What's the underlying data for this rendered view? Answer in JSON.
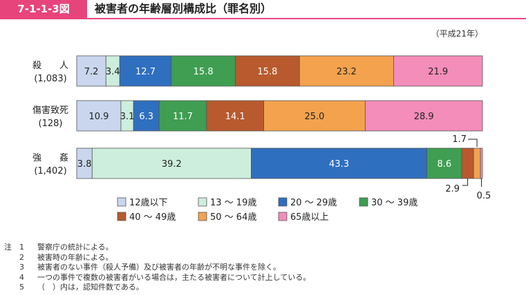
{
  "figure": {
    "label": "7-1-1-3図",
    "title": "被害者の年齢層別構成比（罪名別）",
    "year_note": "（平成21年）"
  },
  "chart_data": {
    "type": "bar",
    "orientation": "horizontal",
    "stacked": "percent",
    "categories": [
      {
        "name": "殺　　人",
        "count": "(1,083)"
      },
      {
        "name": "傷害致死",
        "count": "(128)"
      },
      {
        "name": "強　　姦",
        "count": "(1,402)"
      }
    ],
    "series": [
      {
        "name": "12歳以下",
        "color": "#c9d6ee",
        "values": [
          7.2,
          10.9,
          3.8
        ]
      },
      {
        "name": "13 ～ 19歳",
        "color": "#cdeedd",
        "values": [
          3.4,
          3.1,
          39.2
        ]
      },
      {
        "name": "20 ～ 29歳",
        "color": "#2f6fbf",
        "values": [
          12.7,
          6.3,
          43.3
        ]
      },
      {
        "name": "30 ～ 39歳",
        "color": "#3f9e52",
        "values": [
          15.8,
          11.7,
          8.6
        ]
      },
      {
        "name": "40 ～ 49歳",
        "color": "#b85a2e",
        "values": [
          15.8,
          14.1,
          2.9
        ]
      },
      {
        "name": "50 ～ 64歳",
        "color": "#f4a24e",
        "values": [
          23.2,
          25.0,
          1.7
        ]
      },
      {
        "name": "65歳以上",
        "color": "#f48db9",
        "values": [
          21.9,
          28.9,
          0.5
        ]
      }
    ],
    "value_labels": [
      [
        "7.2",
        "3.4",
        "12.7",
        "15.8",
        "15.8",
        "23.2",
        "21.9"
      ],
      [
        "10.9",
        "3.1",
        "6.3",
        "11.7",
        "14.1",
        "25.0",
        "28.9"
      ],
      [
        "3.8",
        "39.2",
        "43.3",
        "8.6",
        "2.9",
        "1.7",
        "0.5"
      ]
    ],
    "xlim": [
      0,
      100
    ],
    "legend": "bottom"
  },
  "notes": {
    "head": "注",
    "items": [
      {
        "num": "1",
        "text": "警察庁の統計による。"
      },
      {
        "num": "2",
        "text": "被害時の年齢による。"
      },
      {
        "num": "3",
        "text": "被害者のない事件（殺人予備）及び被害者の年齢が不明な事件を除く。"
      },
      {
        "num": "4",
        "text": "一つの事件で複数の被害者がいる場合は，主たる被害者について計上している。"
      },
      {
        "num": "5",
        "text": "（　）内は，認知件数である。"
      }
    ]
  }
}
